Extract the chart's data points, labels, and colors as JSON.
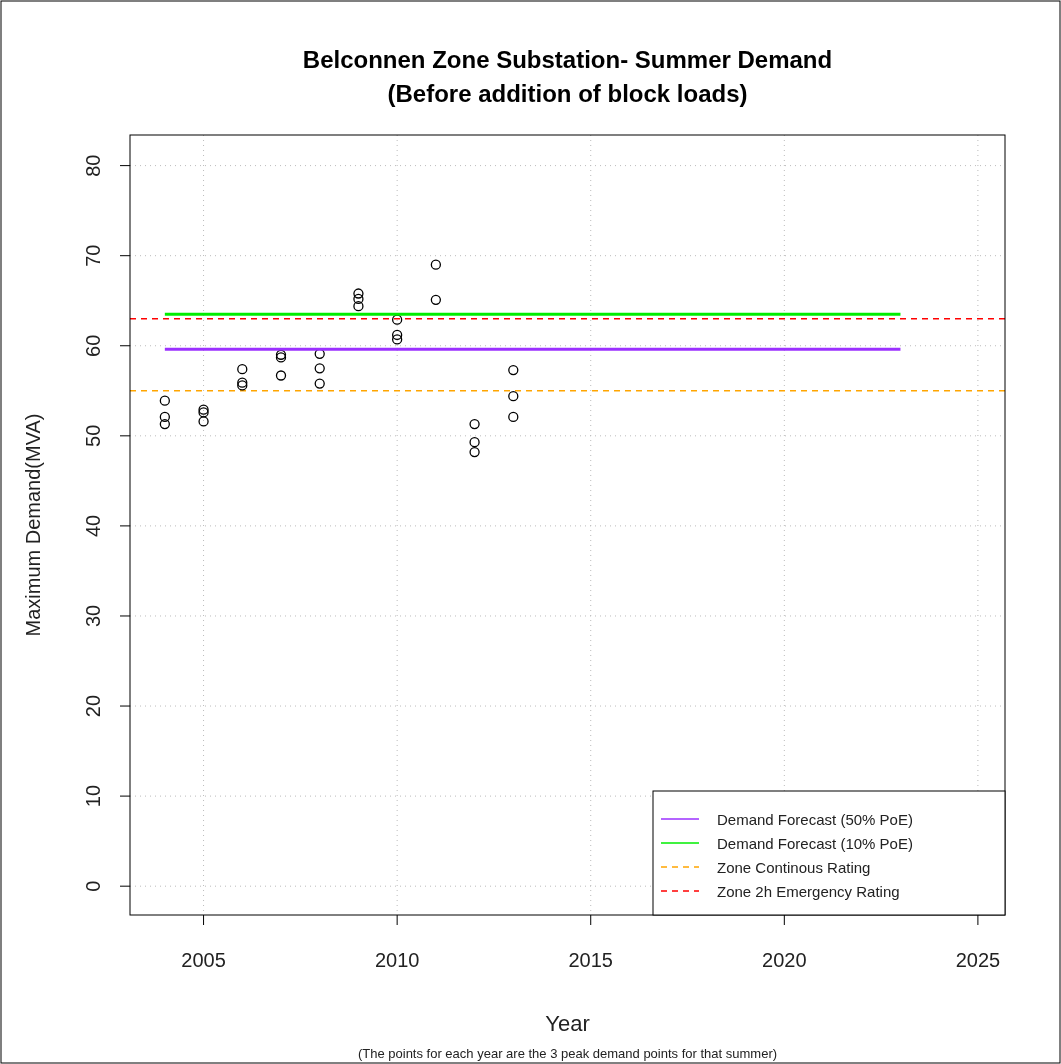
{
  "chart_data": {
    "type": "scatter",
    "title": "Belconnen Zone Substation- Summer Demand\n(Before addition of block loads)",
    "xlabel": "Year",
    "ylabel": "Maximum Demand(MVA)",
    "annotations": [
      "(The points for each year are the 3 peak demand points for that summer)"
    ],
    "series": [
      {
        "color": "#000000",
        "marker": "circle",
        "x": [
          2004,
          2004,
          2004,
          2005,
          2005,
          2005,
          2006,
          2006,
          2006,
          2007,
          2007,
          2007,
          2008,
          2008,
          2008,
          2009,
          2009,
          2009,
          2010,
          2010,
          2010,
          2011,
          2011,
          2012,
          2012,
          2012,
          2013,
          2013,
          2013
        ],
        "values": [
          53.9,
          52.1,
          51.3,
          52.9,
          52.6,
          51.6,
          57.4,
          55.9,
          55.6,
          59.0,
          58.7,
          56.7,
          59.1,
          57.5,
          55.8,
          65.8,
          65.2,
          64.4,
          62.9,
          61.2,
          60.7,
          69.0,
          65.1,
          51.3,
          49.3,
          48.2,
          57.3,
          54.4,
          52.1
        ]
      },
      {
        "type": "line",
        "name": "Demand Forecast (50% PoE)",
        "color": "#9b30ff",
        "x": [
          2004,
          2023
        ],
        "values": [
          59.6,
          59.6
        ]
      },
      {
        "type": "line",
        "name": "Demand Forecast (10% PoE)",
        "color": "#00ee00",
        "x": [
          2004,
          2023
        ],
        "values": [
          63.5,
          63.5
        ]
      }
    ],
    "ref_lines": [
      {
        "axis": "y",
        "value": 55,
        "label": "Zone Continous Rating",
        "color": "#ffa500",
        "line_style": "dashed"
      },
      {
        "axis": "y",
        "value": 63,
        "label": "Zone 2h Emergency Rating",
        "color": "#ff0000",
        "line_style": "dashed"
      }
    ],
    "xlim": [
      2003.1,
      2025.7
    ],
    "ylim": [
      -3.2,
      83.4
    ],
    "xticks": [
      2005,
      2010,
      2015,
      2020,
      2025
    ],
    "yticks": [
      0,
      10,
      20,
      30,
      40,
      50,
      60,
      70,
      80
    ],
    "grid": true,
    "legend": "bottom right"
  }
}
